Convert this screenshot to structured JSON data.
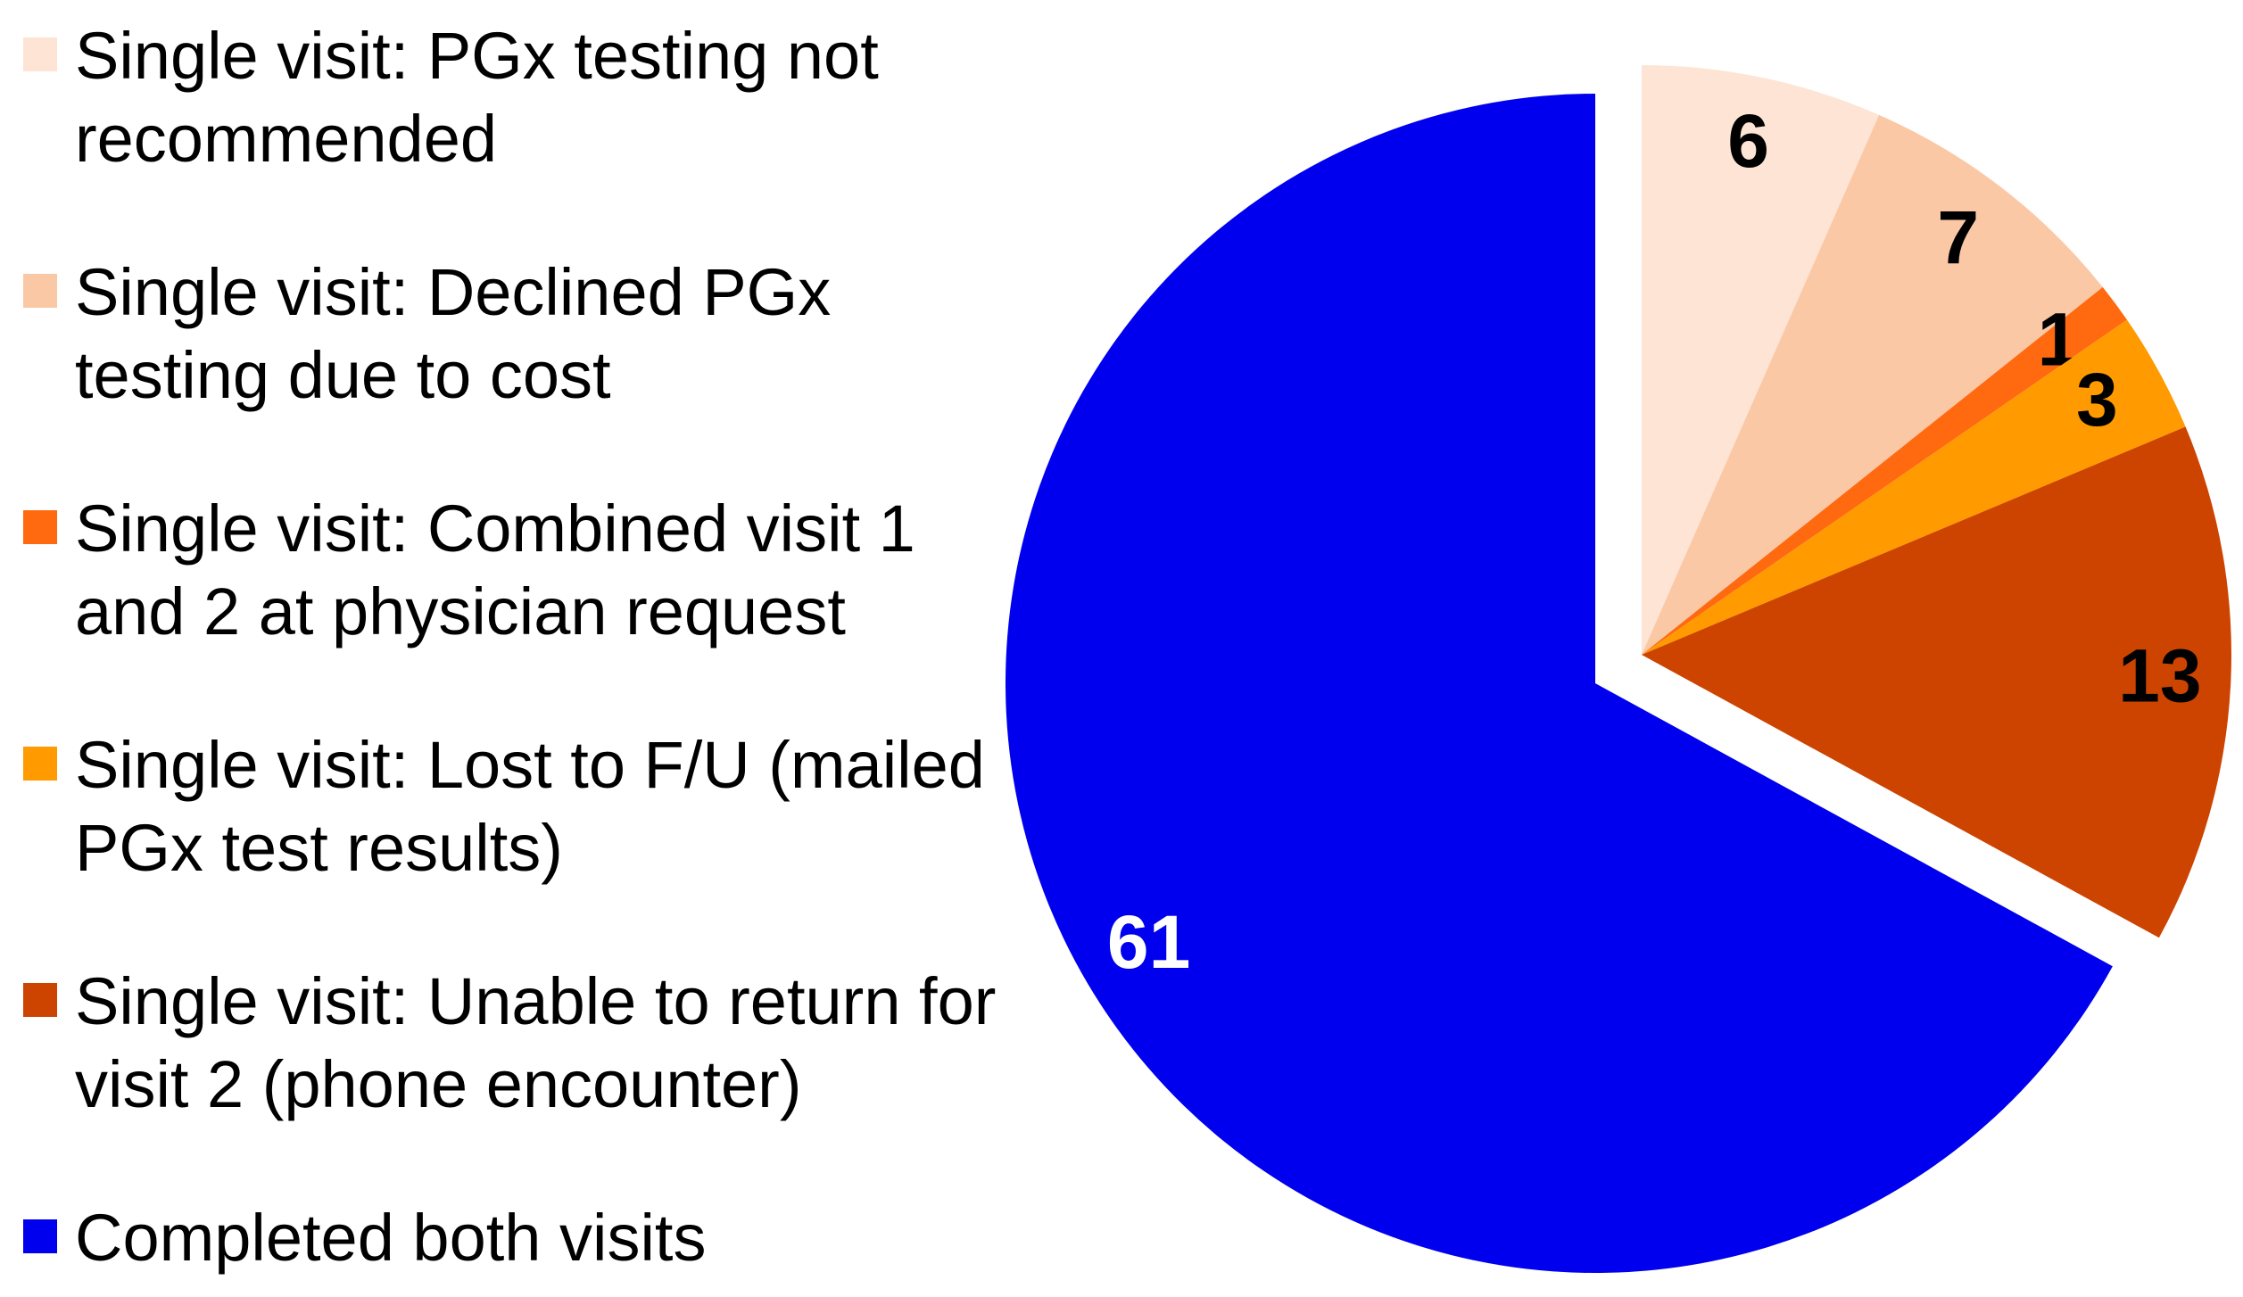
{
  "chart_data": {
    "type": "pie",
    "categories": [
      "Single visit: PGx testing not recommended",
      "Single visit: Declined PGx testing due to cost",
      "Single visit: Combined visit 1 and 2 at physician request",
      "Single visit: Lost to F/U (mailed PGx test results)",
      "Single visit: Unable to return for visit 2 (phone encounter)",
      "Completed both visits"
    ],
    "values": [
      6,
      7,
      1,
      3,
      13,
      61
    ],
    "colors": [
      "#fde4d4",
      "#fbc8a6",
      "#ff6a10",
      "#ff9a00",
      "#cc4400",
      "#0000ee"
    ],
    "exploded": [
      true,
      true,
      true,
      true,
      true,
      false
    ],
    "legend": "left"
  }
}
